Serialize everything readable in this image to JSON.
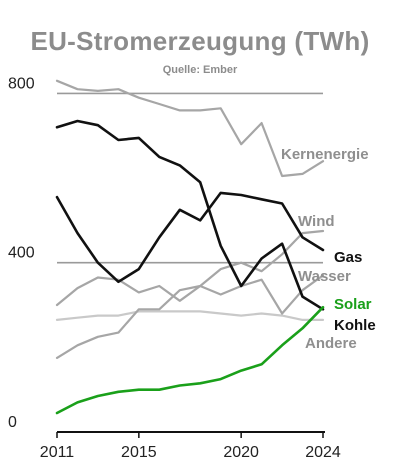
{
  "title": "EU-Stromerzeugung (TWh)",
  "source": "Quelle: Ember",
  "chart_data": {
    "type": "line",
    "x": [
      2011,
      2012,
      2013,
      2014,
      2015,
      2016,
      2017,
      2018,
      2019,
      2020,
      2021,
      2022,
      2023,
      2024
    ],
    "xticks": [
      "2011",
      "2015",
      "2020",
      "2024"
    ],
    "yticks": [
      "0",
      "400",
      "800"
    ],
    "ylim": [
      0,
      820
    ],
    "xlim": [
      2011,
      2024
    ],
    "grid": "horizontal at 400 and 800",
    "series": [
      {
        "name": "Kernenergie",
        "color": "#a6a6a6",
        "values": [
          830,
          810,
          806,
          810,
          790,
          775,
          760,
          760,
          765,
          680,
          730,
          605,
          610,
          640
        ]
      },
      {
        "name": "Wind",
        "color": "#a6a6a6",
        "values": [
          175,
          205,
          225,
          235,
          290,
          290,
          335,
          345,
          385,
          400,
          380,
          420,
          470,
          475
        ]
      },
      {
        "name": "Gas",
        "color": "#111111",
        "values": [
          555,
          470,
          400,
          355,
          385,
          460,
          525,
          500,
          565,
          560,
          550,
          540,
          460,
          430
        ]
      },
      {
        "name": "Wasser",
        "color": "#a6a6a6",
        "values": [
          300,
          340,
          365,
          360,
          330,
          345,
          310,
          345,
          325,
          345,
          360,
          280,
          335,
          370
        ]
      },
      {
        "name": "Solar",
        "color": "#1aa01a",
        "values": [
          45,
          70,
          85,
          95,
          100,
          100,
          110,
          115,
          125,
          145,
          160,
          205,
          245,
          295
        ]
      },
      {
        "name": "Kohle",
        "color": "#111111",
        "values": [
          720,
          735,
          725,
          690,
          695,
          650,
          630,
          590,
          440,
          345,
          410,
          445,
          320,
          290
        ]
      },
      {
        "name": "Andere",
        "color": "#c9c9c9",
        "values": [
          265,
          270,
          275,
          275,
          285,
          285,
          285,
          285,
          280,
          275,
          280,
          275,
          265,
          265
        ]
      }
    ]
  }
}
